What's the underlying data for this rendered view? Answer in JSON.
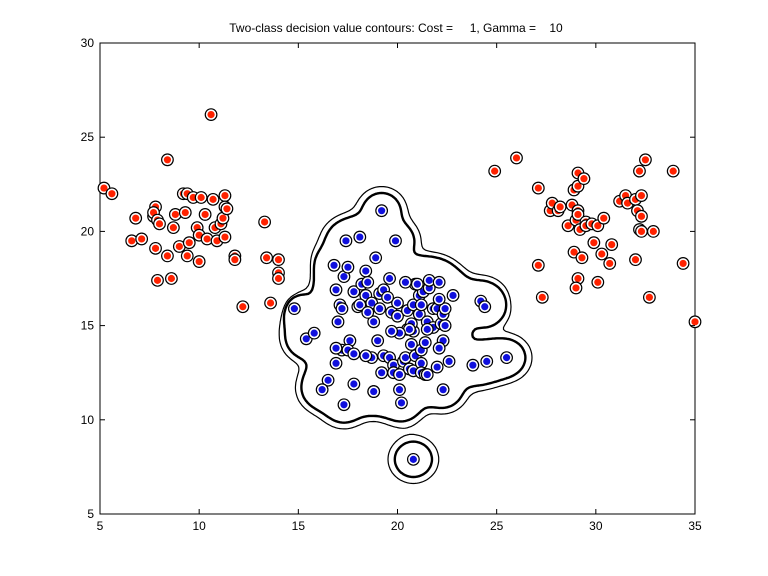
{
  "chart_data": {
    "type": "scatter",
    "title": "Two-class decision value contours: Cost =     1, Gamma =    10",
    "xlabel": "",
    "ylabel": "",
    "xlim": [
      5,
      35
    ],
    "ylim": [
      5,
      30
    ],
    "xticks": [
      5,
      10,
      15,
      20,
      25,
      30,
      35
    ],
    "yticks": [
      5,
      10,
      15,
      20,
      25,
      30
    ],
    "grid": false,
    "legend": "none",
    "colors": {
      "class_red": "#ff2200",
      "class_blue": "#1010dd",
      "contour": "#000000"
    },
    "series": [
      {
        "class": "red",
        "points": [
          [
            5.2,
            22.3
          ],
          [
            5.6,
            22.0
          ],
          [
            6.8,
            20.7
          ],
          [
            6.6,
            19.5
          ],
          [
            7.1,
            19.6
          ],
          [
            7.7,
            20.8
          ],
          [
            7.8,
            21.3
          ],
          [
            7.7,
            21.0
          ],
          [
            7.9,
            20.6
          ],
          [
            8.0,
            20.4
          ],
          [
            7.8,
            19.1
          ],
          [
            7.9,
            17.4
          ],
          [
            8.4,
            23.8
          ],
          [
            8.4,
            18.7
          ],
          [
            8.6,
            17.5
          ],
          [
            8.7,
            20.2
          ],
          [
            8.8,
            20.9
          ],
          [
            9.0,
            19.2
          ],
          [
            9.2,
            22.0
          ],
          [
            9.3,
            21.0
          ],
          [
            9.4,
            22.0
          ],
          [
            9.4,
            18.7
          ],
          [
            9.5,
            19.4
          ],
          [
            9.7,
            21.8
          ],
          [
            9.9,
            20.2
          ],
          [
            10.0,
            18.4
          ],
          [
            10.0,
            19.8
          ],
          [
            10.1,
            21.8
          ],
          [
            10.3,
            20.9
          ],
          [
            10.4,
            19.6
          ],
          [
            10.6,
            26.2
          ],
          [
            10.7,
            21.7
          ],
          [
            10.8,
            20.2
          ],
          [
            10.9,
            19.5
          ],
          [
            11.1,
            20.4
          ],
          [
            11.2,
            20.7
          ],
          [
            11.3,
            21.9
          ],
          [
            11.3,
            21.3
          ],
          [
            11.4,
            21.2
          ],
          [
            11.3,
            19.7
          ],
          [
            11.8,
            18.7
          ],
          [
            11.8,
            18.5
          ],
          [
            12.2,
            16.0
          ],
          [
            13.3,
            20.5
          ],
          [
            13.4,
            18.6
          ],
          [
            13.6,
            16.2
          ],
          [
            14.0,
            18.5
          ],
          [
            14.0,
            17.8
          ],
          [
            14.0,
            17.5
          ],
          [
            24.9,
            23.2
          ],
          [
            26.0,
            23.9
          ],
          [
            27.1,
            22.3
          ],
          [
            27.1,
            18.2
          ],
          [
            27.3,
            16.5
          ],
          [
            27.7,
            21.1
          ],
          [
            27.8,
            21.5
          ],
          [
            28.1,
            21.1
          ],
          [
            28.2,
            21.3
          ],
          [
            28.6,
            20.3
          ],
          [
            28.8,
            21.4
          ],
          [
            28.9,
            22.2
          ],
          [
            29.0,
            20.6
          ],
          [
            28.9,
            18.9
          ],
          [
            29.1,
            23.1
          ],
          [
            29.1,
            22.4
          ],
          [
            29.1,
            21.1
          ],
          [
            29.1,
            20.9
          ],
          [
            29.1,
            17.5
          ],
          [
            29.0,
            17.0
          ],
          [
            29.2,
            20.1
          ],
          [
            29.3,
            18.6
          ],
          [
            29.4,
            22.8
          ],
          [
            29.5,
            20.5
          ],
          [
            29.5,
            20.3
          ],
          [
            29.8,
            20.4
          ],
          [
            29.9,
            19.4
          ],
          [
            30.1,
            17.3
          ],
          [
            30.1,
            20.3
          ],
          [
            30.3,
            18.8
          ],
          [
            30.4,
            20.7
          ],
          [
            30.7,
            18.3
          ],
          [
            30.8,
            19.3
          ],
          [
            31.2,
            21.6
          ],
          [
            31.5,
            21.9
          ],
          [
            31.6,
            21.5
          ],
          [
            32.0,
            21.7
          ],
          [
            32.0,
            18.5
          ],
          [
            32.2,
            23.2
          ],
          [
            32.1,
            21.1
          ],
          [
            32.2,
            20.1
          ],
          [
            32.3,
            20.0
          ],
          [
            32.3,
            21.9
          ],
          [
            32.3,
            20.8
          ],
          [
            32.5,
            23.8
          ],
          [
            32.7,
            16.5
          ],
          [
            32.9,
            20.0
          ],
          [
            33.9,
            23.2
          ],
          [
            34.4,
            18.3
          ],
          [
            35.0,
            15.2
          ]
        ]
      },
      {
        "class": "blue",
        "points": [
          [
            19.2,
            21.1
          ],
          [
            17.4,
            19.5
          ],
          [
            18.1,
            19.7
          ],
          [
            19.9,
            19.5
          ],
          [
            16.8,
            18.2
          ],
          [
            17.3,
            17.6
          ],
          [
            17.5,
            18.1
          ],
          [
            16.9,
            16.9
          ],
          [
            17.1,
            16.1
          ],
          [
            17.2,
            15.9
          ],
          [
            17.0,
            15.2
          ],
          [
            17.8,
            16.8
          ],
          [
            18.0,
            16.0
          ],
          [
            18.2,
            17.2
          ],
          [
            18.5,
            17.3
          ],
          [
            18.4,
            16.6
          ],
          [
            18.1,
            16.1
          ],
          [
            18.7,
            16.2
          ],
          [
            19.1,
            16.7
          ],
          [
            19.3,
            16.9
          ],
          [
            19.6,
            17.5
          ],
          [
            19.1,
            15.9
          ],
          [
            19.7,
            15.7
          ],
          [
            20.0,
            15.5
          ],
          [
            20.5,
            15.8
          ],
          [
            20.5,
            14.8
          ],
          [
            20.8,
            14.7
          ],
          [
            20.7,
            15.1
          ],
          [
            20.6,
            14.8
          ],
          [
            20.1,
            14.6
          ],
          [
            20.8,
            16.1
          ],
          [
            20.9,
            17.2
          ],
          [
            21.1,
            16.6
          ],
          [
            21.3,
            16.8
          ],
          [
            21.6,
            17.0
          ],
          [
            21.1,
            15.6
          ],
          [
            21.5,
            15.2
          ],
          [
            21.8,
            15.9
          ],
          [
            22.0,
            15.9
          ],
          [
            21.8,
            14.9
          ],
          [
            22.2,
            15.1
          ],
          [
            22.4,
            15.0
          ],
          [
            22.3,
            15.6
          ],
          [
            22.4,
            15.9
          ],
          [
            22.3,
            14.2
          ],
          [
            22.8,
            16.6
          ],
          [
            22.1,
            16.4
          ],
          [
            21.6,
            17.4
          ],
          [
            21.0,
            17.2
          ],
          [
            18.8,
            15.2
          ],
          [
            19.0,
            14.2
          ],
          [
            19.7,
            14.7
          ],
          [
            20.7,
            14.0
          ],
          [
            18.7,
            13.3
          ],
          [
            18.4,
            13.4
          ],
          [
            17.6,
            14.2
          ],
          [
            17.2,
            13.7
          ],
          [
            16.9,
            13.8
          ],
          [
            17.5,
            13.7
          ],
          [
            17.8,
            13.5
          ],
          [
            16.9,
            13.0
          ],
          [
            19.3,
            13.4
          ],
          [
            19.6,
            13.3
          ],
          [
            19.8,
            12.9
          ],
          [
            19.2,
            12.5
          ],
          [
            19.8,
            12.5
          ],
          [
            20.3,
            13.1
          ],
          [
            20.1,
            12.4
          ],
          [
            20.4,
            13.3
          ],
          [
            20.6,
            12.7
          ],
          [
            20.8,
            12.6
          ],
          [
            20.9,
            13.4
          ],
          [
            21.2,
            13.0
          ],
          [
            21.2,
            12.5
          ],
          [
            21.4,
            12.4
          ],
          [
            21.5,
            12.4
          ],
          [
            21.2,
            13.7
          ],
          [
            21.4,
            14.1
          ],
          [
            21.5,
            14.8
          ],
          [
            22.1,
            13.8
          ],
          [
            22.0,
            12.8
          ],
          [
            22.6,
            13.1
          ],
          [
            22.3,
            11.6
          ],
          [
            23.8,
            12.9
          ],
          [
            24.5,
            13.1
          ],
          [
            25.5,
            13.3
          ],
          [
            24.2,
            16.3
          ],
          [
            24.4,
            16.0
          ],
          [
            14.8,
            15.9
          ],
          [
            15.4,
            14.3
          ],
          [
            15.8,
            14.6
          ],
          [
            16.5,
            12.1
          ],
          [
            16.2,
            11.6
          ],
          [
            17.8,
            11.9
          ],
          [
            17.3,
            10.8
          ],
          [
            18.8,
            11.5
          ],
          [
            18.8,
            11.5
          ],
          [
            20.2,
            10.9
          ],
          [
            20.1,
            11.6
          ],
          [
            20.8,
            7.9
          ],
          [
            18.9,
            18.6
          ],
          [
            18.4,
            17.9
          ],
          [
            20.4,
            17.3
          ],
          [
            21.2,
            16.1
          ],
          [
            20.0,
            16.2
          ],
          [
            18.5,
            15.7
          ],
          [
            19.5,
            16.5
          ],
          [
            22.1,
            17.3
          ]
        ]
      }
    ]
  }
}
